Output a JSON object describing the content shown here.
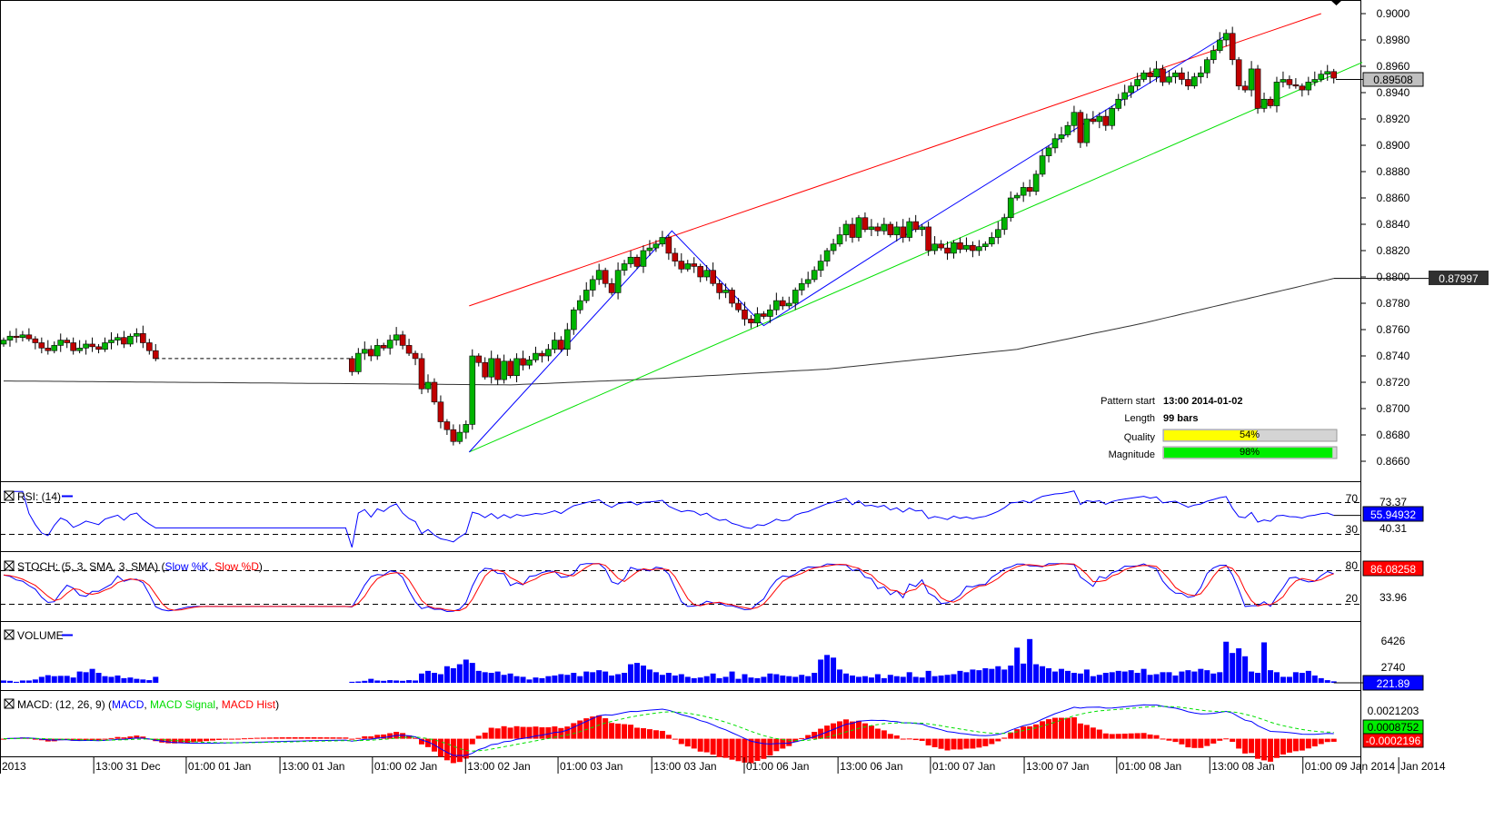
{
  "chart_data": {
    "type": "candlestick",
    "price_axis": {
      "max": 0.9,
      "min": 0.866,
      "ticks": [
        "0.9000",
        "0.8980",
        "0.8960",
        "0.8940",
        "0.8920",
        "0.8900",
        "0.8880",
        "0.8860",
        "0.8840",
        "0.8820",
        "0.8800",
        "0.8780",
        "0.8760",
        "0.8740",
        "0.8720",
        "0.8700",
        "0.8680",
        "0.8660"
      ]
    },
    "candles_close": [
      0.8752,
      0.8755,
      0.8754,
      0.8756,
      0.8753,
      0.875,
      0.8746,
      0.8744,
      0.8748,
      0.8752,
      0.875,
      0.8744,
      0.8746,
      0.8749,
      0.8747,
      0.8745,
      0.875,
      0.8752,
      0.8754,
      0.8749,
      0.8755,
      0.8757,
      0.875,
      0.8744,
      0.8738,
      null,
      null,
      null,
      null,
      null,
      null,
      null,
      null,
      null,
      null,
      null,
      null,
      null,
      null,
      null,
      null,
      null,
      null,
      null,
      null,
      null,
      null,
      null,
      null,
      null,
      null,
      null,
      null,
      null,
      null,
      0.8728,
      0.8742,
      0.8745,
      0.874,
      0.8748,
      0.8746,
      0.8752,
      0.8756,
      0.8748,
      0.8742,
      0.8738,
      0.8715,
      0.872,
      0.8705,
      0.869,
      0.8684,
      0.8675,
      0.8682,
      0.8688,
      0.874,
      0.8735,
      0.8724,
      0.8738,
      0.8722,
      0.8736,
      0.8725,
      0.8738,
      0.8733,
      0.8737,
      0.8742,
      0.874,
      0.8745,
      0.8752,
      0.8745,
      0.876,
      0.8775,
      0.8782,
      0.879,
      0.8798,
      0.8805,
      0.8795,
      0.8788,
      0.8805,
      0.881,
      0.8815,
      0.8808,
      0.882,
      0.8822,
      0.8825,
      0.883,
      0.8818,
      0.8812,
      0.8806,
      0.881,
      0.8808,
      0.88,
      0.8805,
      0.8795,
      0.8788,
      0.879,
      0.878,
      0.8775,
      0.8768,
      0.8765,
      0.8772,
      0.877,
      0.8775,
      0.8782,
      0.8778,
      0.878,
      0.879,
      0.8795,
      0.8798,
      0.8805,
      0.8812,
      0.882,
      0.8825,
      0.8832,
      0.884,
      0.883,
      0.8845,
      0.8836,
      0.8838,
      0.8835,
      0.884,
      0.8832,
      0.8838,
      0.883,
      0.8842,
      0.8836,
      0.8838,
      0.882,
      0.8825,
      0.8822,
      0.8818,
      0.8826,
      0.8821,
      0.8824,
      0.882,
      0.8823,
      0.8825,
      0.883,
      0.8836,
      0.8845,
      0.886,
      0.8862,
      0.8868,
      0.8865,
      0.8878,
      0.8892,
      0.8898,
      0.8905,
      0.8908,
      0.8915,
      0.8925,
      0.8902,
      0.892,
      0.8918,
      0.8922,
      0.8915,
      0.8928,
      0.8935,
      0.894,
      0.8945,
      0.895,
      0.8955,
      0.8952,
      0.8958,
      0.8948,
      0.8952,
      0.8955,
      0.895,
      0.8945,
      0.8952,
      0.8955,
      0.8965,
      0.8972,
      0.898,
      0.8985,
      0.8965,
      0.8945,
      0.8942,
      0.8958,
      0.8928,
      0.8935,
      0.893,
      0.8948,
      0.895,
      0.8946,
      0.8945,
      0.8942,
      0.8948,
      0.895,
      0.8954,
      0.8956,
      0.8951
    ],
    "volume": [
      350,
      300,
      150,
      350,
      350,
      500,
      900,
      1150,
      1000,
      1050,
      1050,
      800,
      1700,
      1600,
      2100,
      1500,
      1000,
      900,
      1100,
      700,
      800,
      600,
      500,
      400,
      900,
      null,
      null,
      null,
      null,
      null,
      null,
      null,
      null,
      null,
      null,
      null,
      null,
      null,
      null,
      null,
      null,
      null,
      null,
      null,
      null,
      null,
      null,
      null,
      null,
      null,
      null,
      null,
      null,
      null,
      null,
      150,
      200,
      300,
      600,
      350,
      300,
      400,
      350,
      300,
      400,
      350,
      1400,
      1800,
      1500,
      1300,
      2500,
      2200,
      2800,
      3500,
      3000,
      1800,
      1600,
      1500,
      1700,
      1200,
      1400,
      1000,
      900,
      500,
      800,
      700,
      1000,
      1100,
      1300,
      1200,
      1500,
      1000,
      1700,
      1600,
      1900,
      1700,
      1100,
      1300,
      1500,
      2800,
      3000,
      2600,
      2000,
      1600,
      1200,
      1500,
      1100,
      1300,
      900,
      700,
      800,
      1000,
      1400,
      700,
      900,
      1700,
      600,
      1300,
      800,
      700,
      900,
      1400,
      1300,
      1100,
      1000,
      900,
      1200,
      1000,
      1500,
      3500,
      4200,
      3800,
      2000,
      1400,
      1100,
      900,
      1000,
      800,
      1300,
      700,
      1200,
      1000,
      900,
      1600,
      900,
      800,
      1800,
      1000,
      1100,
      1200,
      1300,
      1800,
      1600,
      2000,
      1900,
      2200,
      2100,
      2500,
      2000,
      2600,
      5300,
      2900,
      6600,
      2800,
      2500,
      2200,
      1700,
      2100,
      1800,
      1500,
      1400,
      2000,
      1000,
      1200,
      1500,
      1600,
      1800,
      1700,
      1900,
      1500,
      2100,
      1200,
      1300,
      1600,
      1600,
      1100,
      1700,
      1900,
      1700,
      2100,
      1900,
      1400,
      1600,
      6200,
      4500,
      5200,
      4000,
      1700,
      1500,
      6100,
      1900,
      1600,
      900,
      900,
      1600,
      1500,
      1800,
      1100,
      700,
      400,
      222
    ],
    "moving_average_keypoints": [
      [
        0,
        0.8721
      ],
      [
        80,
        0.8718
      ],
      [
        100,
        0.8722
      ],
      [
        130,
        0.873
      ],
      [
        160,
        0.8745
      ],
      [
        180,
        0.8765
      ],
      [
        211,
        0.88
      ]
    ],
    "pattern_lines": {
      "resistance": [
        [
          73.5,
          0.8778
        ],
        [
          208,
          0.9
        ]
      ],
      "support": [
        [
          73.5,
          0.8667
        ],
        [
          214.5,
          0.8963
        ]
      ],
      "zigzag": [
        [
          73.5,
          0.8667
        ],
        [
          105.5,
          0.8835
        ],
        [
          120,
          0.8763
        ],
        [
          145,
          0.884
        ],
        [
          193.5,
          0.8985
        ]
      ]
    },
    "x_labels": [
      {
        "label": "2013",
        "bar": 0
      },
      {
        "label": "13:00 31 Dec",
        "bar": 14.8
      },
      {
        "label": "01:00 01 Jan",
        "bar": 29.4
      },
      {
        "label": "13:00 01 Jan",
        "bar": 44.2
      },
      {
        "label": "01:00 02 Jan",
        "bar": 58.8
      },
      {
        "label": "13:00 02 Jan",
        "bar": 73.5
      },
      {
        "label": "01:00 03 Jan",
        "bar": 88.1
      },
      {
        "label": "13:00 03 Jan",
        "bar": 102.9
      },
      {
        "label": "01:00 06 Jan",
        "bar": 117.5
      },
      {
        "label": "13:00 06 Jan",
        "bar": 132.3
      },
      {
        "label": "01:00 07 Jan",
        "bar": 146.9
      },
      {
        "label": "13:00 07 Jan",
        "bar": 161.7
      },
      {
        "label": "01:00 08 Jan",
        "bar": 176.3
      },
      {
        "label": "13:00 08 Jan",
        "bar": 191
      },
      {
        "label": "01:00 09 Jan 2014",
        "bar": 205.7
      },
      {
        "label": "Jan 2014",
        "bar": 218
      }
    ],
    "badges": {
      "last_price": "0.89508",
      "ma_value": "0.87997"
    }
  },
  "pattern_info": {
    "start_label": "Pattern start",
    "start_value": "13:00 2014-01-02",
    "length_label": "Length",
    "length_value": "99 bars",
    "quality_label": "Quality",
    "quality_value": "54%",
    "quality_fraction": 0.54,
    "magnitude_label": "Magnitude",
    "magnitude_value": "98%",
    "magnitude_fraction": 0.98
  },
  "rsi": {
    "title": "RSI: (14)",
    "level_high": "70",
    "level_low": "30",
    "label_high": "73.37",
    "label_low": "40.31",
    "current": "55.94932"
  },
  "stoch": {
    "title": "STOCH: (5, 3, SMA, 3, SMA) (",
    "k": "Slow %K",
    "comma": ", ",
    "d": "Slow %D",
    "close": ")",
    "level_high": "80",
    "level_low": "20",
    "label_low": "33.96",
    "current": "86.08258"
  },
  "volume": {
    "title": "VOLUME",
    "tick_high": "6426",
    "tick_low": "2740",
    "current": "221.89"
  },
  "macd": {
    "title": "MACD: (12, 26, 9) (",
    "macd": "MACD",
    "comma": ", ",
    "signal": "MACD Signal",
    "comma2": ", ",
    "hist": "MACD Hist",
    "close": ")",
    "tick": "0.0021203",
    "signal_value": "0.0008752",
    "hist_value": "-0.0002196"
  },
  "colors": {
    "up": "#00b400",
    "down": "#c00000",
    "rsi": "#0000ff",
    "k": "#0000ff",
    "d": "#ff0000",
    "macd": "#0000ff",
    "signal": "#00e000",
    "hist": "#ff0000",
    "resistance": "#ff0000",
    "support": "#00e000",
    "zigzag": "#0000ff"
  }
}
